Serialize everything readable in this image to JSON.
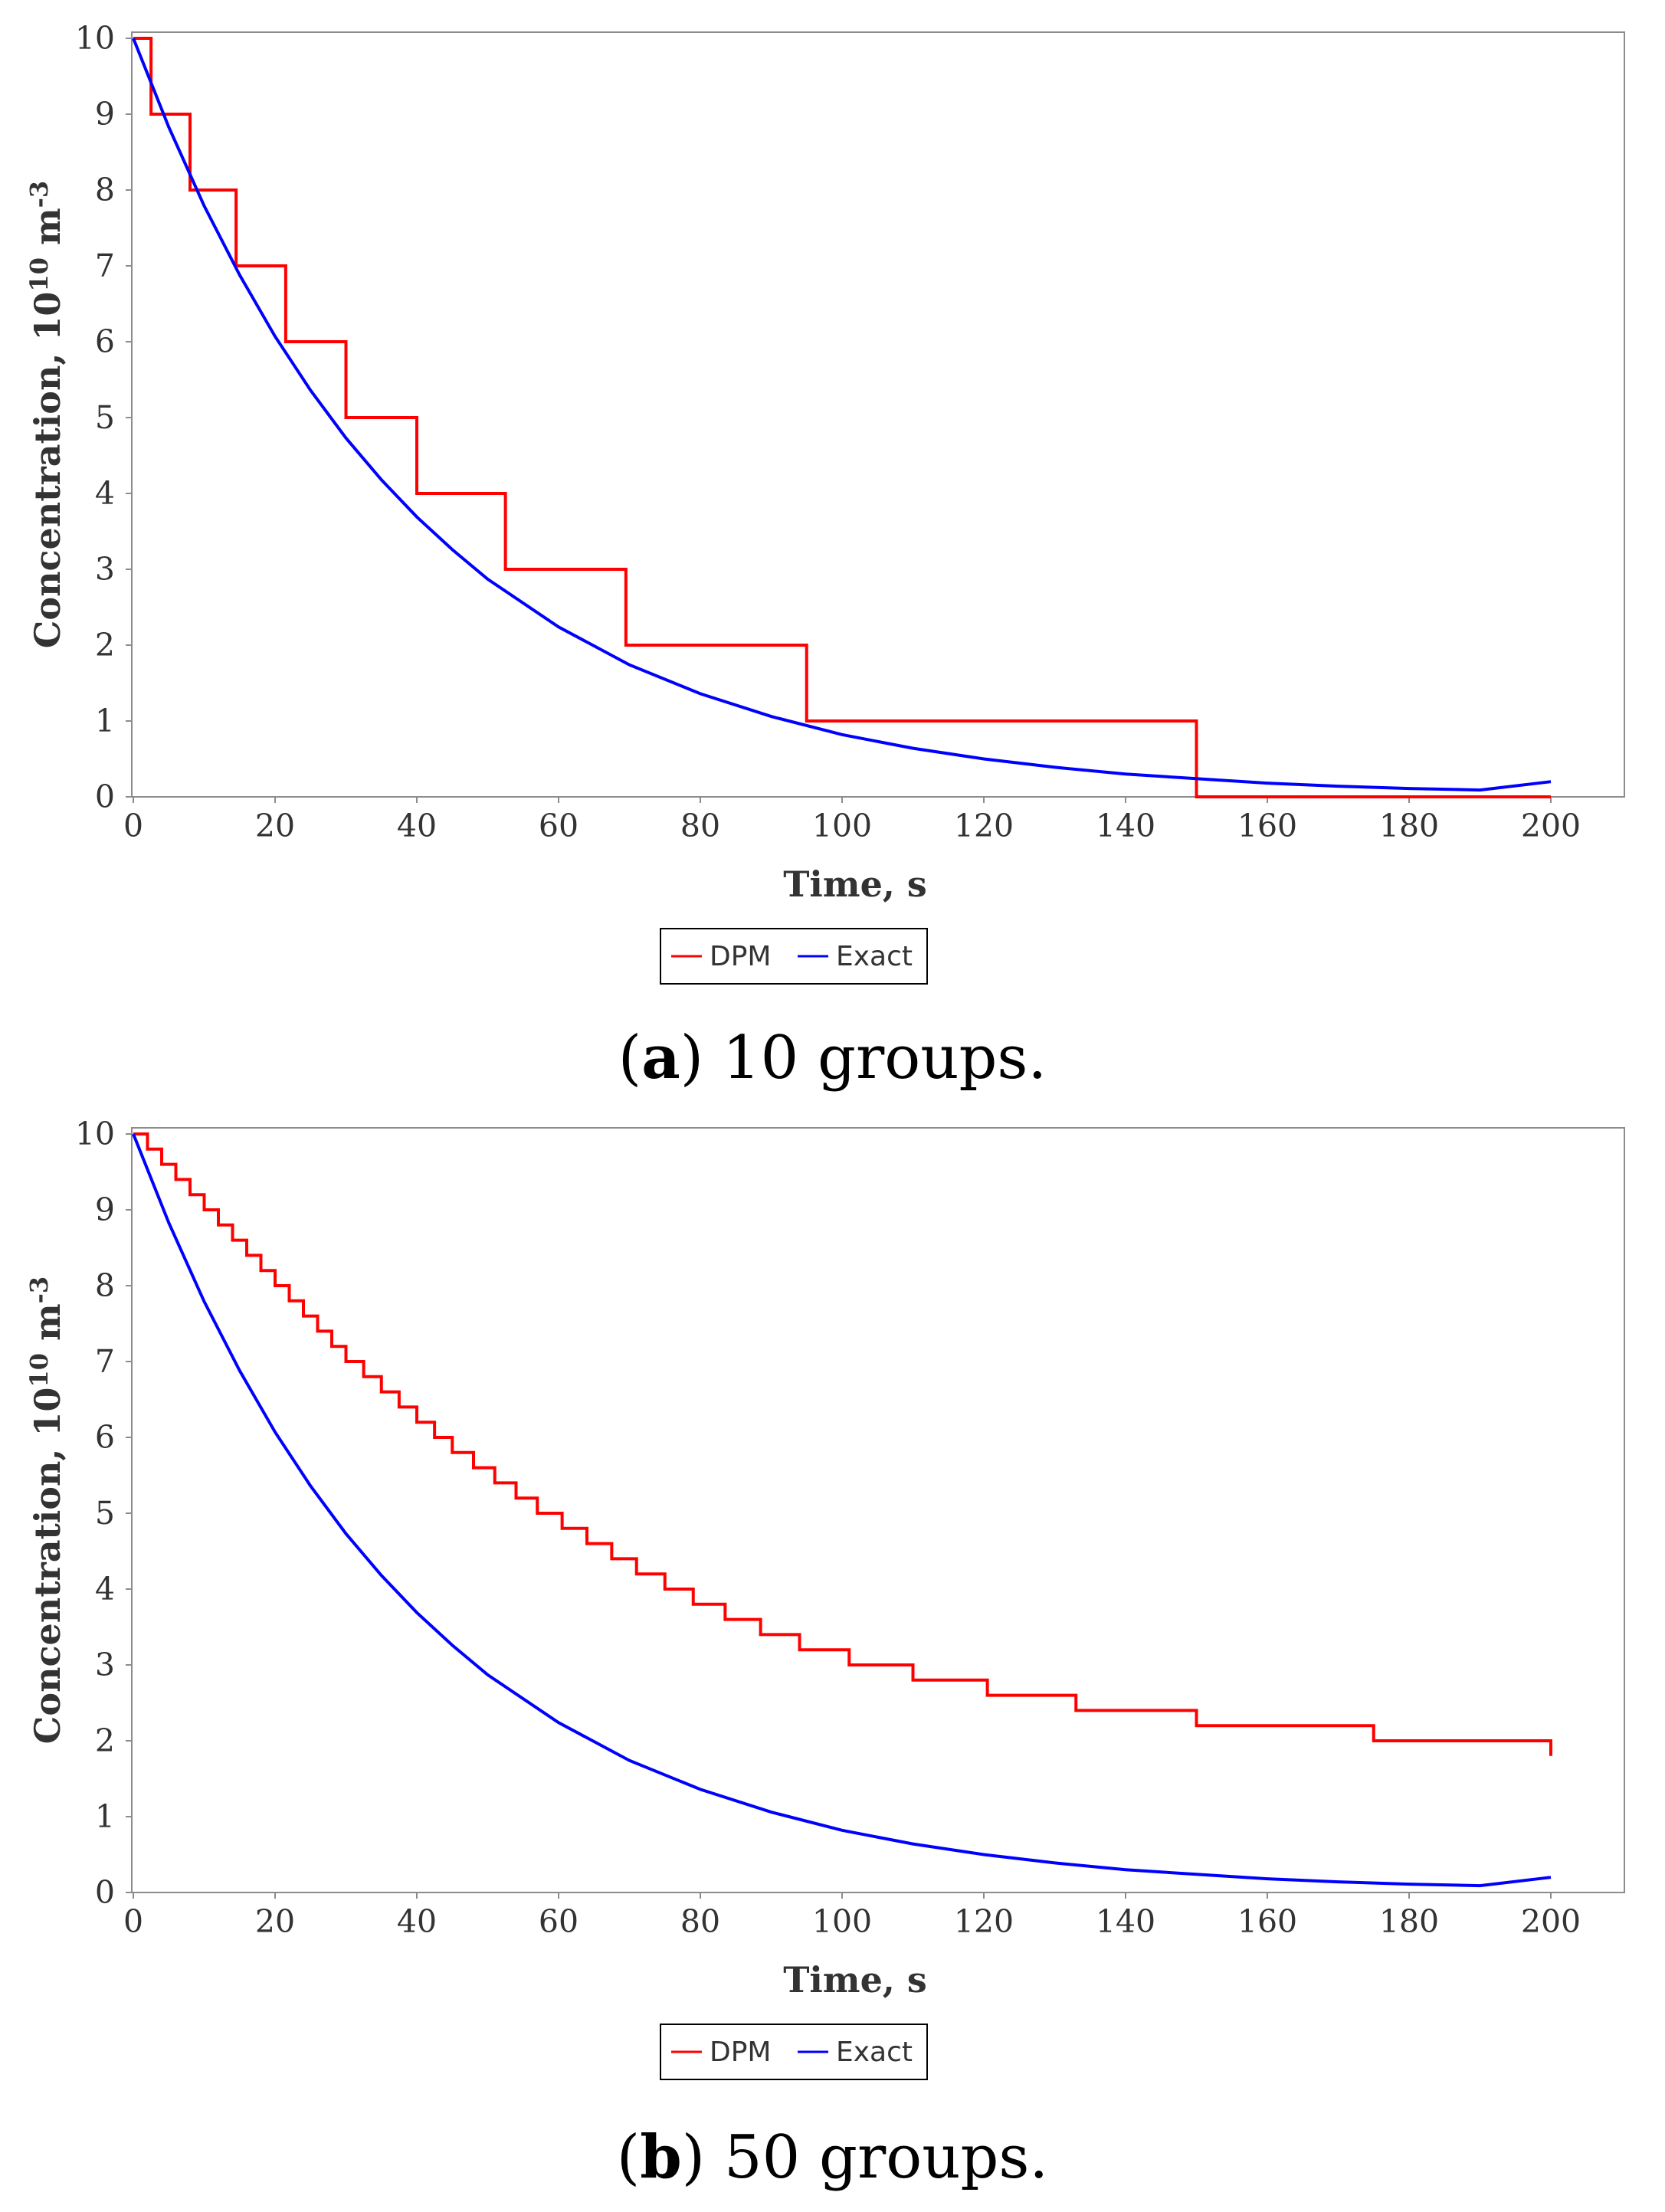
{
  "figure": {
    "panels": [
      {
        "caption_letter": "a",
        "caption_rest": ") 10 groups.",
        "caption_open": "(",
        "legend": [
          "DPM",
          "Exact"
        ]
      },
      {
        "caption_letter": "b",
        "caption_rest": ") 50 groups.",
        "caption_open": "(",
        "legend": [
          "DPM",
          "Exact"
        ]
      }
    ]
  },
  "colors": {
    "dpm": "#ff0000",
    "exact": "#0000ff",
    "axis": "#8c8c8c",
    "text": "#333333"
  },
  "chart_data": [
    {
      "type": "line",
      "title": "",
      "xlabel": "Time, s",
      "ylabel_main": "Concentration, 10",
      "ylabel_sup1": "10",
      "ylabel_unit": " m",
      "ylabel_sup2": "-3",
      "xlim": [
        0,
        200
      ],
      "ylim": [
        0,
        10
      ],
      "xticks": [
        0,
        20,
        40,
        60,
        80,
        100,
        120,
        140,
        160,
        180,
        200
      ],
      "yticks": [
        0,
        1,
        2,
        3,
        4,
        5,
        6,
        7,
        8,
        9,
        10
      ],
      "grid": false,
      "legend_position": "bottom-center",
      "series": [
        {
          "name": "DPM",
          "color": "#ff0000",
          "style": "step",
          "x": [
            0,
            2.5,
            8,
            14.5,
            21.5,
            30,
            40,
            52.5,
            69.5,
            95,
            150,
            200
          ],
          "y": [
            10,
            9,
            8,
            7,
            6,
            5,
            4,
            3,
            2,
            1,
            0,
            0
          ]
        },
        {
          "name": "Exact",
          "color": "#0000ff",
          "style": "line",
          "x": [
            0,
            5,
            10,
            15,
            20,
            25,
            30,
            35,
            40,
            45,
            50,
            60,
            70,
            80,
            90,
            100,
            110,
            120,
            130,
            140,
            150,
            160,
            170,
            180,
            190,
            200
          ],
          "y": [
            10.0,
            8.83,
            7.79,
            6.88,
            6.07,
            5.36,
            4.73,
            4.18,
            3.69,
            3.26,
            2.87,
            2.24,
            1.74,
            1.36,
            1.06,
            0.82,
            0.64,
            0.5,
            0.39,
            0.3,
            0.24,
            0.18,
            0.14,
            0.11,
            0.09,
            0.2
          ]
        }
      ]
    },
    {
      "type": "line",
      "title": "",
      "xlabel": "Time, s",
      "ylabel_main": "Concentration, 10",
      "ylabel_sup1": "10",
      "ylabel_unit": " m",
      "ylabel_sup2": "-3",
      "xlim": [
        0,
        200
      ],
      "ylim": [
        0,
        10
      ],
      "xticks": [
        0,
        20,
        40,
        60,
        80,
        100,
        120,
        140,
        160,
        180,
        200
      ],
      "yticks": [
        0,
        1,
        2,
        3,
        4,
        5,
        6,
        7,
        8,
        9,
        10
      ],
      "grid": false,
      "legend_position": "bottom-center",
      "series": [
        {
          "name": "DPM",
          "color": "#ff0000",
          "style": "step",
          "x": [
            0,
            2,
            4,
            6,
            8,
            10,
            12,
            14,
            16,
            18,
            20,
            22,
            24,
            26,
            28,
            30,
            32.5,
            35,
            37.5,
            40,
            42.5,
            45,
            48,
            51,
            54,
            57,
            60.5,
            64,
            67.5,
            71,
            75,
            79,
            83.5,
            88.5,
            94,
            101,
            110,
            120.5,
            133,
            150,
            175,
            200
          ],
          "y": [
            10.0,
            9.8,
            9.6,
            9.4,
            9.2,
            9.0,
            8.8,
            8.6,
            8.4,
            8.2,
            8.0,
            7.8,
            7.6,
            7.4,
            7.2,
            7.0,
            6.8,
            6.6,
            6.4,
            6.2,
            6.0,
            5.8,
            5.6,
            5.4,
            5.2,
            5.0,
            4.8,
            4.6,
            4.4,
            4.2,
            4.0,
            3.8,
            3.6,
            3.4,
            3.2,
            3.0,
            2.8,
            2.6,
            2.4,
            2.2,
            2.0,
            1.8
          ]
        },
        {
          "name": "Exact",
          "color": "#0000ff",
          "style": "line",
          "x": [
            0,
            5,
            10,
            15,
            20,
            25,
            30,
            35,
            40,
            45,
            50,
            60,
            70,
            80,
            90,
            100,
            110,
            120,
            130,
            140,
            150,
            160,
            170,
            180,
            190,
            200
          ],
          "y": [
            10.0,
            8.83,
            7.79,
            6.88,
            6.07,
            5.36,
            4.73,
            4.18,
            3.69,
            3.26,
            2.87,
            2.24,
            1.74,
            1.36,
            1.06,
            0.82,
            0.64,
            0.5,
            0.39,
            0.3,
            0.24,
            0.18,
            0.14,
            0.11,
            0.09,
            0.2
          ]
        }
      ]
    }
  ]
}
